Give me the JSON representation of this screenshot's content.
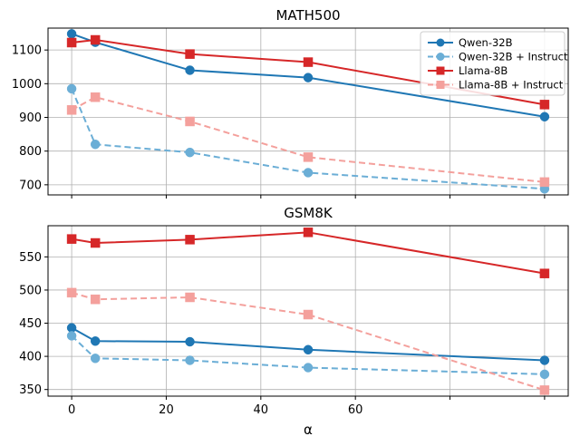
{
  "chart_data": [
    {
      "type": "line",
      "title": "MATH500",
      "xlabel": "",
      "ylabel": "",
      "x": [
        0,
        5,
        25,
        50,
        100
      ],
      "xlim": [
        -5,
        105
      ],
      "ylim": [
        670,
        1165
      ],
      "xticks": [
        0,
        20,
        40,
        60,
        80,
        100
      ],
      "xtick_labels": [],
      "yticks": [
        700,
        800,
        900,
        1000,
        1100
      ],
      "ytick_labels": [
        "700",
        "800",
        "900",
        "1000",
        "1100"
      ],
      "grid": true,
      "legend": "top-right",
      "series": [
        {
          "name": "Qwen-32B",
          "values": [
            1148,
            1123,
            1040,
            1018,
            902
          ],
          "color": "#1f77b4",
          "dash": false,
          "marker": "circle"
        },
        {
          "name": "Qwen-32B + Instruct",
          "values": [
            985,
            820,
            796,
            736,
            688
          ],
          "color": "#6baed6",
          "dash": true,
          "marker": "circle"
        },
        {
          "name": "Llama-8B",
          "values": [
            1122,
            1130,
            1088,
            1064,
            938
          ],
          "color": "#d62728",
          "dash": false,
          "marker": "square"
        },
        {
          "name": "Llama-8B + Instruct",
          "values": [
            922,
            960,
            888,
            782,
            708
          ],
          "color": "#f4a09c",
          "dash": true,
          "marker": "square"
        }
      ]
    },
    {
      "type": "line",
      "title": "GSM8K",
      "xlabel": "α",
      "ylabel": "",
      "x": [
        0,
        5,
        25,
        50,
        100
      ],
      "xlim": [
        -5,
        105
      ],
      "ylim": [
        340,
        597
      ],
      "xticks": [
        0,
        20,
        40,
        60,
        80,
        100
      ],
      "xtick_labels": [
        "0",
        "20",
        "40",
        "60",
        "",
        ""
      ],
      "yticks": [
        350,
        400,
        450,
        500,
        550
      ],
      "ytick_labels": [
        "350",
        "400",
        "450",
        "500",
        "550"
      ],
      "grid": true,
      "legend": "none",
      "series": [
        {
          "name": "Qwen-32B",
          "values": [
            443,
            423,
            422,
            410,
            394
          ],
          "color": "#1f77b4",
          "dash": false,
          "marker": "circle"
        },
        {
          "name": "Qwen-32B + Instruct",
          "values": [
            431,
            397,
            394,
            383,
            373
          ],
          "color": "#6baed6",
          "dash": true,
          "marker": "circle"
        },
        {
          "name": "Llama-8B",
          "values": [
            577,
            571,
            576,
            587,
            525
          ],
          "color": "#d62728",
          "dash": false,
          "marker": "square"
        },
        {
          "name": "Llama-8B + Instruct",
          "values": [
            496,
            486,
            489,
            463,
            349
          ],
          "color": "#f4a09c",
          "dash": true,
          "marker": "square"
        }
      ]
    }
  ]
}
